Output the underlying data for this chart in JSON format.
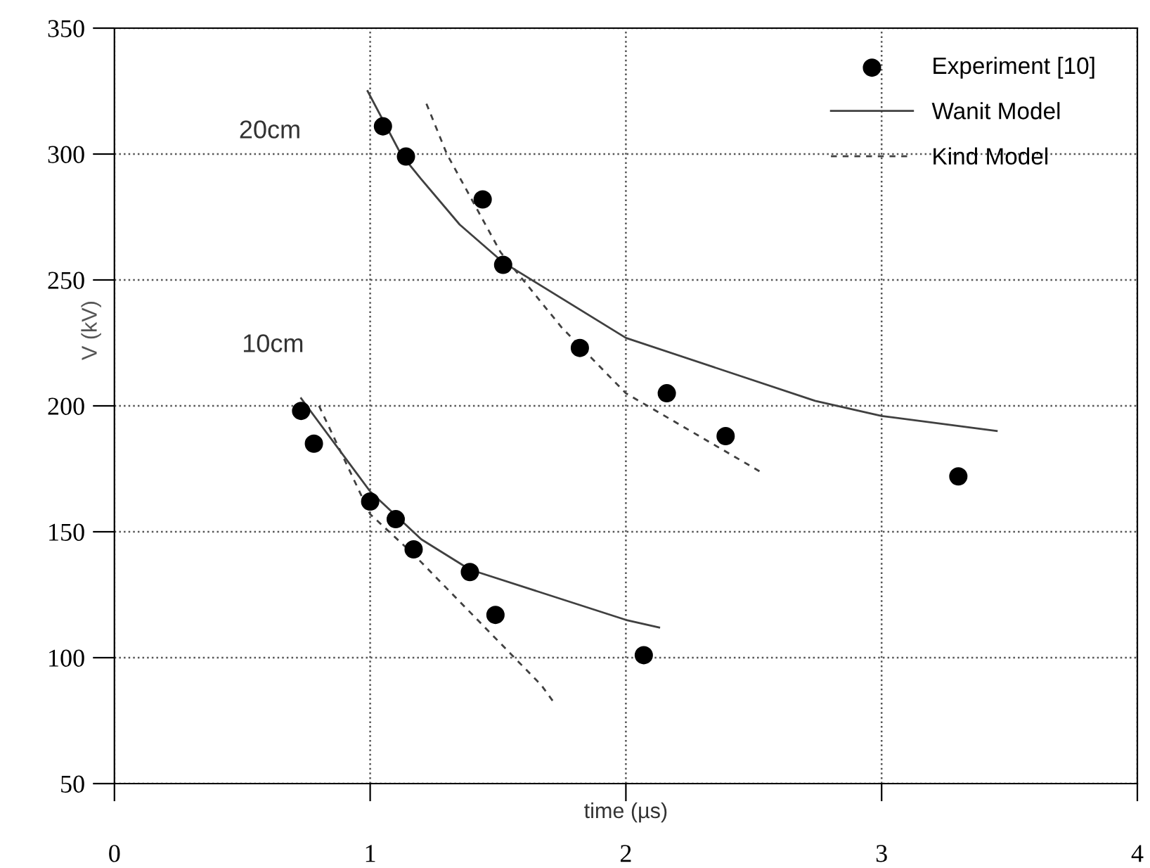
{
  "chart_data": {
    "type": "scatter",
    "xlabel": "time (µs)",
    "ylabel": "V (kV)",
    "xlim": [
      0,
      4
    ],
    "xticks": [
      0,
      1,
      2,
      3,
      4
    ],
    "ylim": [
      50,
      350
    ],
    "yticks": [
      50,
      100,
      150,
      200,
      250,
      300,
      350
    ],
    "grid": true,
    "legend": "top right",
    "annotations": [
      "20cm",
      "10cm"
    ],
    "series": [
      {
        "name": "Experiment [10]",
        "marker": "circle",
        "color": "#000000",
        "x": [
          1.05,
          1.14,
          1.44,
          1.52,
          1.82,
          2.16,
          2.39,
          3.3,
          0.73,
          0.78,
          1.0,
          1.1,
          1.17,
          1.39,
          1.49,
          2.07
        ],
        "values": [
          311,
          299,
          282,
          256,
          223,
          205,
          188,
          172,
          198,
          185,
          162,
          155,
          143,
          134,
          117,
          101
        ]
      },
      {
        "name": "Wanit Model",
        "type": "line",
        "line_style": "solid",
        "color": "#404040",
        "x": [
          0.99,
          1.12,
          1.2,
          1.35,
          1.52,
          2.0,
          2.74,
          3.0,
          3.45
        ],
        "values": [
          325,
          300,
          290,
          272,
          257,
          227,
          202,
          196,
          190
        ]
      },
      {
        "type": "line",
        "line_style": "solid",
        "color": "#404040",
        "x": [
          0.73,
          1.0,
          1.2,
          1.39,
          2.0,
          2.13
        ],
        "values": [
          203,
          166,
          147,
          135,
          115,
          112
        ]
      },
      {
        "name": "Kind Model",
        "type": "line",
        "line_style": "dashed",
        "color": "#404040",
        "x": [
          1.22,
          1.3,
          1.51,
          1.75,
          2.0,
          2.54
        ],
        "values": [
          320,
          300,
          261,
          231,
          205,
          173
        ]
      },
      {
        "type": "line",
        "line_style": "dashed",
        "color": "#404040",
        "x": [
          0.8,
          1.0,
          1.17,
          1.67,
          1.72
        ],
        "values": [
          200,
          157,
          141,
          89,
          82
        ]
      }
    ]
  }
}
